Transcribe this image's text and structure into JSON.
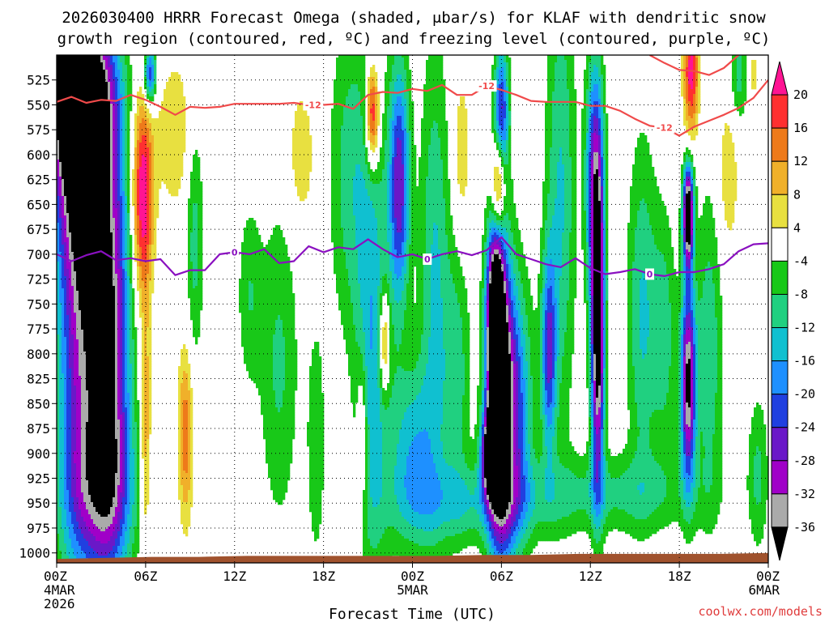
{
  "chart_data": {
    "type": "heatmap",
    "title_line1": "2026030400 HRRR Forecast Omega (shaded, μbar/s) for KLAF with dendritic snow",
    "title_line2": "growth region (contoured, red, ºC) and freezing level (contoured, purple, ºC)",
    "xlabel": "Forecast Time (UTC)",
    "ylabel": "",
    "credit": "coolwx.com/models",
    "x_range_hours": [
      0,
      48
    ],
    "y_range_hpa": [
      1010,
      500
    ],
    "y_ticks": [
      525,
      550,
      575,
      600,
      625,
      650,
      675,
      700,
      725,
      750,
      775,
      800,
      825,
      850,
      875,
      900,
      925,
      950,
      975,
      1000
    ],
    "x_ticks": [
      {
        "hour": 0,
        "label": "00Z",
        "sub1": "4MAR",
        "sub2": "2026"
      },
      {
        "hour": 6,
        "label": "06Z",
        "sub1": "",
        "sub2": ""
      },
      {
        "hour": 12,
        "label": "12Z",
        "sub1": "",
        "sub2": ""
      },
      {
        "hour": 18,
        "label": "18Z",
        "sub1": "",
        "sub2": ""
      },
      {
        "hour": 24,
        "label": "00Z",
        "sub1": "5MAR",
        "sub2": ""
      },
      {
        "hour": 30,
        "label": "06Z",
        "sub1": "",
        "sub2": ""
      },
      {
        "hour": 36,
        "label": "12Z",
        "sub1": "",
        "sub2": ""
      },
      {
        "hour": 42,
        "label": "18Z",
        "sub1": "",
        "sub2": ""
      },
      {
        "hour": 48,
        "label": "00Z",
        "sub1": "6MAR",
        "sub2": ""
      }
    ],
    "colorbar": {
      "labels": [
        "20",
        "16",
        "12",
        "8",
        "4",
        "-4",
        "-8",
        "-12",
        "-16",
        "-20",
        "-24",
        "-28",
        "-32",
        "-36"
      ],
      "colors": [
        "#ff1493",
        "#ff3030",
        "#ee7a1a",
        "#f0b02a",
        "#e8e040",
        "#ffffff",
        "#18c818",
        "#20d080",
        "#10c0d0",
        "#1e90ff",
        "#2040e0",
        "#6a18c8",
        "#a000c8",
        "#aaaaaa",
        "#000000"
      ]
    },
    "level_colors": {
      "omega_le_-36": "#000000",
      "omega_le_-32": "#aaaaaa",
      "omega_le_-28": "#a000c8",
      "omega_le_-24": "#6a18c8",
      "omega_le_-20": "#2040e0",
      "omega_le_-16": "#1e90ff",
      "omega_le_-12": "#10c0d0",
      "omega_le_-8": "#20d080",
      "omega_le_-4": "#18c818",
      "omega_ge_4": "#e8e040",
      "omega_ge_8": "#f0b02a",
      "omega_ge_12": "#ee7a1a",
      "omega_ge_16": "#ff3030",
      "omega_ge_20": "#ff1493"
    },
    "omega_features": [
      {
        "t": 0.3,
        "p": 520,
        "w": 0.35,
        "h": 18,
        "v": -36
      },
      {
        "t": 1.5,
        "p": 540,
        "w": 2.2,
        "h": 80,
        "v": -32
      },
      {
        "t": 1.8,
        "p": 610,
        "w": 1.9,
        "h": 120,
        "v": -24
      },
      {
        "t": 1.5,
        "p": 800,
        "w": 1.5,
        "h": 230,
        "v": -20
      },
      {
        "t": 3.5,
        "p": 810,
        "w": 1.4,
        "h": 210,
        "v": -30
      },
      {
        "t": 3.0,
        "p": 940,
        "w": 2.6,
        "h": 70,
        "v": -10
      },
      {
        "t": 5.8,
        "p": 640,
        "w": 0.7,
        "h": 100,
        "v": 20
      },
      {
        "t": 6.3,
        "p": 520,
        "w": 0.4,
        "h": 30,
        "v": -20
      },
      {
        "t": 6.0,
        "p": 875,
        "w": 0.35,
        "h": 130,
        "v": 10
      },
      {
        "t": 8.7,
        "p": 880,
        "w": 0.5,
        "h": 90,
        "v": 12
      },
      {
        "t": 8.0,
        "p": 580,
        "w": 1.3,
        "h": 80,
        "v": 6
      },
      {
        "t": 9.3,
        "p": 680,
        "w": 0.6,
        "h": 130,
        "v": -8
      },
      {
        "t": 13.0,
        "p": 740,
        "w": 0.8,
        "h": 90,
        "v": -6
      },
      {
        "t": 15.0,
        "p": 810,
        "w": 1.3,
        "h": 160,
        "v": -7
      },
      {
        "t": 16.5,
        "p": 600,
        "w": 0.9,
        "h": 70,
        "v": 6
      },
      {
        "t": 17.5,
        "p": 890,
        "w": 0.6,
        "h": 120,
        "v": -6
      },
      {
        "t": 19.8,
        "p": 620,
        "w": 1.4,
        "h": 160,
        "v": -8
      },
      {
        "t": 21.3,
        "p": 560,
        "w": 0.45,
        "h": 50,
        "v": 20
      },
      {
        "t": 20.6,
        "p": 880,
        "w": 0.35,
        "h": 80,
        "v": 8
      },
      {
        "t": 21.3,
        "p": 800,
        "w": 1.1,
        "h": 230,
        "v": -12
      },
      {
        "t": 22.1,
        "p": 790,
        "w": 0.35,
        "h": 50,
        "v": 14
      },
      {
        "t": 23.1,
        "p": 630,
        "w": 0.7,
        "h": 120,
        "v": -22
      },
      {
        "t": 24.0,
        "p": 900,
        "w": 1.6,
        "h": 90,
        "v": -12
      },
      {
        "t": 25.5,
        "p": 720,
        "w": 1.0,
        "h": 230,
        "v": -10
      },
      {
        "t": 27.0,
        "p": 820,
        "w": 0.9,
        "h": 130,
        "v": -8
      },
      {
        "t": 27.3,
        "p": 600,
        "w": 0.6,
        "h": 80,
        "v": 6
      },
      {
        "t": 29.8,
        "p": 630,
        "w": 0.45,
        "h": 50,
        "v": 20
      },
      {
        "t": 30.0,
        "p": 560,
        "w": 0.5,
        "h": 70,
        "v": -20
      },
      {
        "t": 29.6,
        "p": 775,
        "w": 0.55,
        "h": 95,
        "v": -36
      },
      {
        "t": 29.9,
        "p": 850,
        "w": 0.9,
        "h": 160,
        "v": -30
      },
      {
        "t": 29.3,
        "p": 900,
        "w": 0.6,
        "h": 40,
        "v": -32
      },
      {
        "t": 31.0,
        "p": 860,
        "w": 1.1,
        "h": 130,
        "v": -16
      },
      {
        "t": 33.2,
        "p": 800,
        "w": 0.5,
        "h": 100,
        "v": -18
      },
      {
        "t": 34.0,
        "p": 640,
        "w": 1.0,
        "h": 230,
        "v": -10
      },
      {
        "t": 36.5,
        "p": 780,
        "w": 0.45,
        "h": 150,
        "v": -34
      },
      {
        "t": 36.3,
        "p": 620,
        "w": 0.6,
        "h": 120,
        "v": -20
      },
      {
        "t": 39.5,
        "p": 760,
        "w": 1.0,
        "h": 170,
        "v": -10
      },
      {
        "t": 41.0,
        "p": 780,
        "w": 0.8,
        "h": 120,
        "v": -8
      },
      {
        "t": 42.6,
        "p": 660,
        "w": 0.35,
        "h": 50,
        "v": -36
      },
      {
        "t": 42.6,
        "p": 830,
        "w": 0.5,
        "h": 100,
        "v": -30
      },
      {
        "t": 42.8,
        "p": 510,
        "w": 0.5,
        "h": 40,
        "v": 16
      },
      {
        "t": 42.8,
        "p": 560,
        "w": 0.5,
        "h": 40,
        "v": 8
      },
      {
        "t": 44.0,
        "p": 800,
        "w": 0.9,
        "h": 160,
        "v": -9
      },
      {
        "t": 45.3,
        "p": 620,
        "w": 0.7,
        "h": 80,
        "v": 6
      },
      {
        "t": 46.0,
        "p": 520,
        "w": 0.6,
        "h": 50,
        "v": -8
      },
      {
        "t": 47.0,
        "p": 520,
        "w": 0.3,
        "h": 30,
        "v": 5
      },
      {
        "t": 47.3,
        "p": 920,
        "w": 0.7,
        "h": 80,
        "v": -7
      },
      {
        "t": 37.5,
        "p": 940,
        "w": 6.0,
        "h": 40,
        "v": -7
      },
      {
        "t": 28.0,
        "p": 950,
        "w": 5.0,
        "h": 40,
        "v": -8
      }
    ],
    "series": [
      {
        "name": "-12C isotherm (dendritic growth region)",
        "label": "-12",
        "color": "#f04a4a",
        "x": [
          0,
          1,
          2,
          3,
          4,
          5,
          6,
          7,
          8,
          9,
          10,
          11,
          12,
          13,
          14,
          15,
          16,
          17,
          18,
          19,
          20,
          21,
          22,
          23,
          24,
          25,
          26,
          27,
          28,
          29,
          30,
          31,
          32,
          33,
          34,
          35,
          36,
          37,
          38,
          39,
          40,
          41,
          42,
          43,
          44,
          45,
          46,
          47,
          48
        ],
        "y": [
          547,
          542,
          548,
          545,
          546,
          540,
          545,
          552,
          560,
          552,
          553,
          552,
          549,
          549,
          549,
          549,
          548,
          550,
          550,
          549,
          554,
          540,
          537,
          538,
          534,
          536,
          530,
          540,
          540,
          531,
          535,
          540,
          546,
          547,
          547,
          547,
          551,
          551,
          556,
          564,
          571,
          573,
          581,
          572,
          566,
          560,
          553,
          543,
          525
        ]
      },
      {
        "name": "-12C isotherm upper branch",
        "label": "",
        "color": "#f04a4a",
        "x": [
          40,
          41,
          42,
          43,
          44,
          45,
          46
        ],
        "y": [
          500,
          508,
          515,
          516,
          520,
          513,
          500
        ]
      },
      {
        "name": "0C isotherm (freezing level)",
        "label": "0",
        "color": "#8a10c0",
        "x": [
          0,
          1,
          2,
          3,
          4,
          5,
          6,
          7,
          8,
          9,
          10,
          11,
          12,
          13,
          14,
          15,
          16,
          17,
          18,
          19,
          20,
          21,
          22,
          23,
          24,
          25,
          26,
          27,
          28,
          29,
          30,
          31,
          32,
          33,
          34,
          35,
          36,
          37,
          38,
          39,
          40,
          41,
          42,
          43,
          44,
          45,
          46,
          47,
          48
        ],
        "y": [
          700,
          707,
          701,
          697,
          706,
          704,
          707,
          705,
          721,
          716,
          716,
          700,
          698,
          700,
          695,
          709,
          707,
          692,
          698,
          693,
          695,
          685,
          695,
          703,
          700,
          705,
          700,
          697,
          701,
          696,
          683,
          700,
          705,
          710,
          713,
          704,
          714,
          720,
          718,
          715,
          720,
          722,
          718,
          718,
          715,
          710,
          697,
          690,
          689
        ]
      }
    ],
    "contour_labels": [
      {
        "series": 0,
        "hour": 17.3,
        "text": "-12"
      },
      {
        "series": 0,
        "hour": 29.0,
        "text": "-12"
      },
      {
        "series": 0,
        "hour": 41.0,
        "text": "-12"
      },
      {
        "series": 2,
        "hour": 12.0,
        "text": "0"
      },
      {
        "series": 2,
        "hour": 25.0,
        "text": "0"
      },
      {
        "series": 2,
        "hour": 40.0,
        "text": "0"
      }
    ],
    "terrain_color": "#a0522d",
    "terrain_hpa": [
      1006,
      1005,
      1004,
      1004,
      1003,
      1003,
      1003,
      1003,
      1003,
      1002,
      1002,
      1001,
      1001,
      1001,
      1001,
      1000
    ]
  }
}
